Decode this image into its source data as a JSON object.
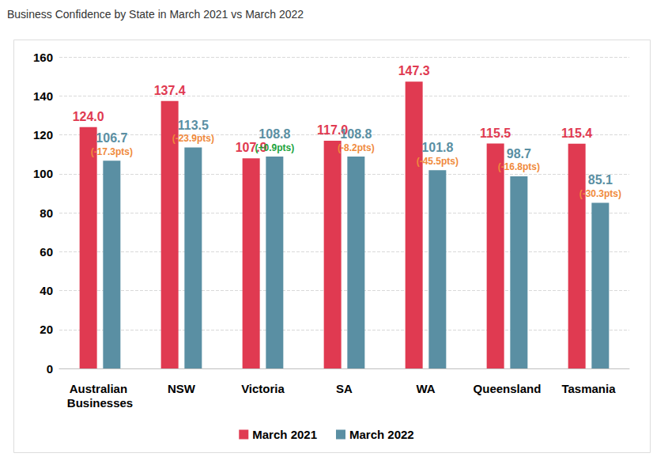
{
  "chart_data": {
    "type": "bar",
    "title": "Business Confidence by State in March 2021 vs March 2022",
    "categories": [
      "Australian Businesses",
      "NSW",
      "Victoria",
      "SA",
      "WA",
      "Queensland",
      "Tasmania"
    ],
    "series": [
      {
        "name": "March 2021",
        "color": "#e03a51",
        "values": [
          124.0,
          137.4,
          107.9,
          117.0,
          147.3,
          115.5,
          115.4
        ],
        "value_labels": [
          "124.0",
          "137.4",
          "107.9",
          "117.0",
          "147.3",
          "115.5",
          "115.4"
        ]
      },
      {
        "name": "March 2022",
        "color": "#5a8fa3",
        "values": [
          106.7,
          113.5,
          108.8,
          108.8,
          101.8,
          98.7,
          85.1
        ],
        "changes": [
          -17.3,
          -23.9,
          0.9,
          -8.2,
          -45.5,
          -16.8,
          -30.3
        ],
        "change_labels": [
          "(-17.3pts)",
          "(-23.9pts)",
          "(+0.9pts)",
          "(-8.2pts)",
          "(-45.5pts)",
          "(-16.8pts)",
          "(-30.3pts)"
        ]
      }
    ],
    "ylim": [
      0,
      160
    ],
    "yticks": [
      0,
      20,
      40,
      60,
      80,
      100,
      120,
      140,
      160
    ],
    "grid": true,
    "legend": "bottom",
    "data_labels": true
  }
}
